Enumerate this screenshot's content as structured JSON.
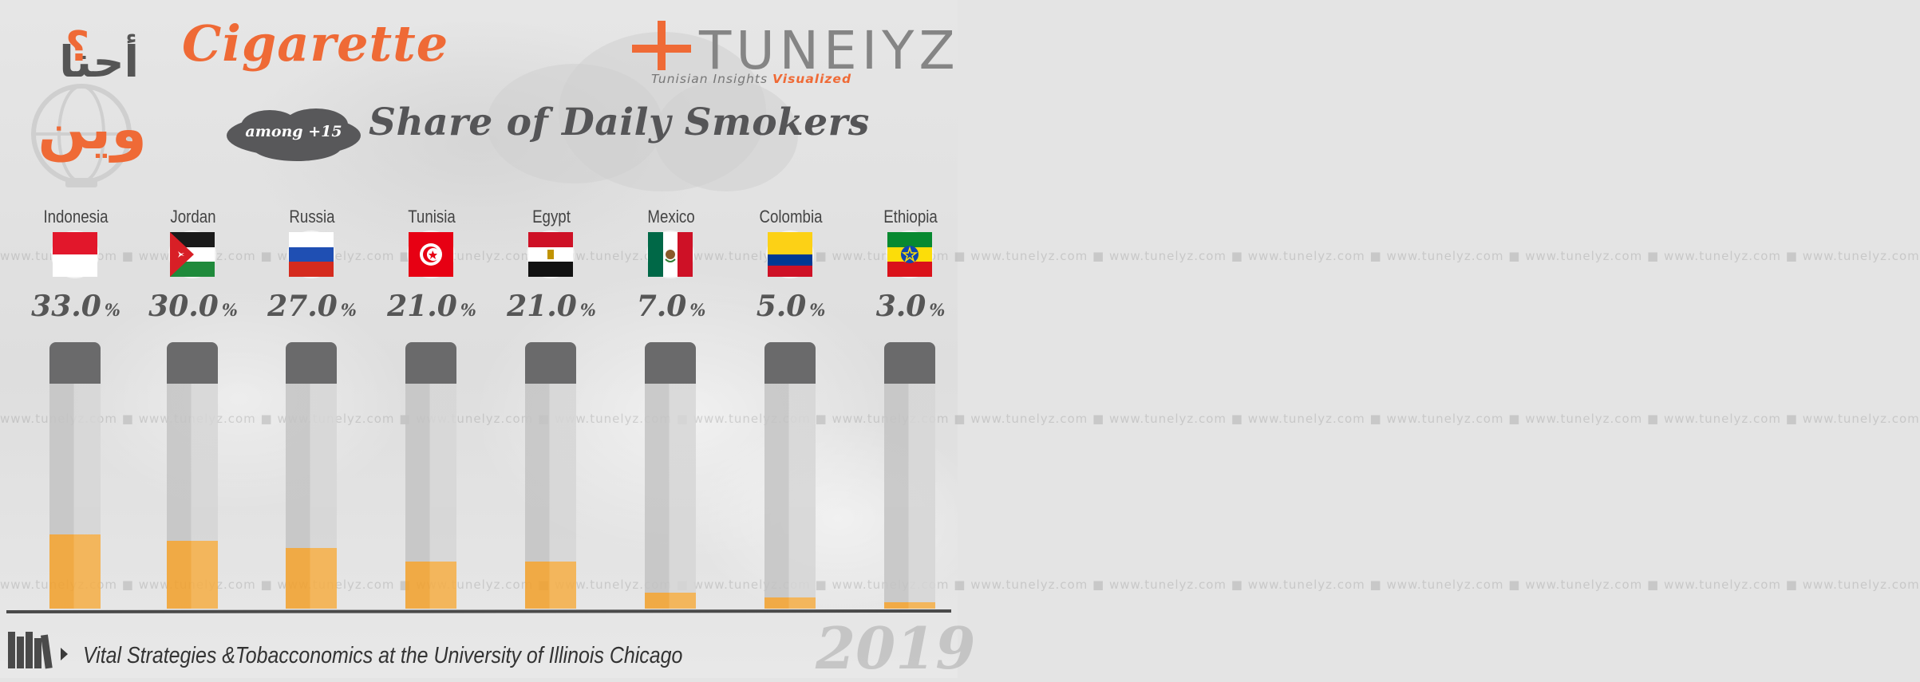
{
  "header": {
    "arabic_logo_text": "أحنا وين ؟",
    "title": "Cigarette",
    "badge": "among +15",
    "subtitle": "Share of Daily Smokers",
    "brand_name": "TUNEIYZ",
    "brand_tagline_main": "Tunisian Insights",
    "brand_tagline_accent": "Visualized"
  },
  "watermark": "www.tunelyz.com",
  "colors": {
    "accent": "#ef6a36",
    "bar_fill": "#f3a02a",
    "cap": "#6a6a6b",
    "text_dark": "#565656"
  },
  "chart_data": {
    "type": "bar",
    "title": "Cigarette",
    "subtitle": "Share of Daily Smokers",
    "categories": [
      "Indonesia",
      "Jordan",
      "Russia",
      "Tunisia",
      "Egypt",
      "Mexico",
      "Colombia",
      "Ethiopia"
    ],
    "values": [
      33.0,
      30.0,
      27.0,
      21.0,
      21.0,
      7.0,
      5.0,
      3.0
    ],
    "value_labels": [
      "33.0",
      "30.0",
      "27.0",
      "21.0",
      "21.0",
      "7.0",
      "5.0",
      "3.0"
    ],
    "unit": "%",
    "ylim": [
      0,
      100
    ],
    "flags": [
      "indonesia-flag",
      "jordan-flag",
      "russia-flag",
      "tunisia-flag",
      "egypt-flag",
      "mexico-flag",
      "colombia-flag",
      "ethiopia-flag"
    ]
  },
  "footer": {
    "source": "Vital Strategies &Tobacconomics at the University of Illinois Chicago",
    "year": "2019"
  }
}
